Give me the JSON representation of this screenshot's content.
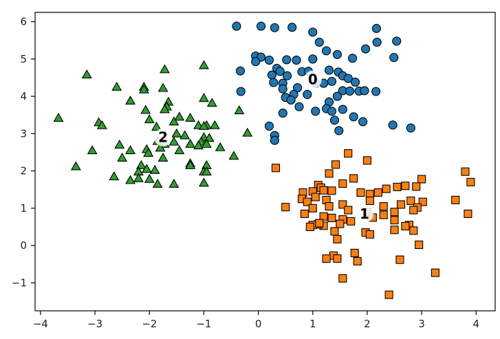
{
  "chart_data": {
    "type": "scatter",
    "title": "",
    "xlabel": "",
    "ylabel": "",
    "xlim": [
      -4.1,
      4.35
    ],
    "ylim": [
      -1.75,
      6.25
    ],
    "xticks": [
      -4,
      -3,
      -2,
      -1,
      0,
      1,
      2,
      3,
      4
    ],
    "yticks": [
      -1,
      0,
      1,
      2,
      3,
      4,
      5,
      6
    ],
    "grid": false,
    "legend": "none",
    "series": [
      {
        "marker": "circle",
        "color": "#1f77b4",
        "points": [
          [
            -0.4,
            5.88
          ],
          [
            0.05,
            5.88
          ],
          [
            0.3,
            5.84
          ],
          [
            0.62,
            5.85
          ],
          [
            1.0,
            5.72
          ],
          [
            1.12,
            5.45
          ],
          [
            2.17,
            5.82
          ],
          [
            2.18,
            5.45
          ],
          [
            2.54,
            5.48
          ],
          [
            1.97,
            5.27
          ],
          [
            2.49,
            5.04
          ],
          [
            -0.05,
            5.08
          ],
          [
            0.05,
            5.05
          ],
          [
            -0.05,
            4.93
          ],
          [
            0.2,
            4.97
          ],
          [
            0.52,
            4.98
          ],
          [
            0.7,
            4.97
          ],
          [
            1.0,
            5.0
          ],
          [
            1.25,
            5.22
          ],
          [
            1.45,
            5.12
          ],
          [
            1.73,
            5.02
          ],
          [
            0.34,
            4.75
          ],
          [
            0.4,
            4.67
          ],
          [
            0.25,
            4.57
          ],
          [
            0.53,
            4.55
          ],
          [
            0.8,
            4.66
          ],
          [
            0.92,
            4.67
          ],
          [
            1.3,
            4.7
          ],
          [
            1.47,
            4.65
          ],
          [
            1.55,
            4.55
          ],
          [
            1.65,
            4.48
          ],
          [
            1.78,
            4.38
          ],
          [
            -0.33,
            4.68
          ],
          [
            0.28,
            4.37
          ],
          [
            0.45,
            4.35
          ],
          [
            0.72,
            4.23
          ],
          [
            0.45,
            4.2
          ],
          [
            1.05,
            4.35
          ],
          [
            1.2,
            4.35
          ],
          [
            1.35,
            4.4
          ],
          [
            1.55,
            4.15
          ],
          [
            -0.32,
            4.13
          ],
          [
            0.65,
            4.05
          ],
          [
            0.9,
            4.05
          ],
          [
            1.45,
            4.0
          ],
          [
            1.68,
            4.14
          ],
          [
            1.85,
            4.14
          ],
          [
            1.95,
            4.15
          ],
          [
            2.16,
            4.13
          ],
          [
            0.5,
            3.97
          ],
          [
            0.6,
            3.9
          ],
          [
            1.3,
            3.85
          ],
          [
            0.75,
            3.72
          ],
          [
            1.25,
            3.67
          ],
          [
            1.35,
            3.6
          ],
          [
            0.45,
            3.55
          ],
          [
            1.55,
            3.65
          ],
          [
            1.75,
            3.45
          ],
          [
            1.05,
            3.6
          ],
          [
            1.4,
            3.36
          ],
          [
            0.2,
            3.2
          ],
          [
            0.3,
            2.95
          ],
          [
            0.3,
            2.82
          ],
          [
            1.48,
            3.08
          ],
          [
            1.92,
            3.32
          ],
          [
            2.47,
            3.23
          ],
          [
            2.8,
            3.15
          ]
        ]
      },
      {
        "marker": "square",
        "color": "#ff7f0e",
        "points": [
          [
            1.65,
            2.47
          ],
          [
            1.42,
            2.17
          ],
          [
            2.0,
            2.28
          ],
          [
            0.32,
            2.08
          ],
          [
            1.3,
            1.93
          ],
          [
            1.55,
            1.66
          ],
          [
            1.35,
            1.47
          ],
          [
            1.75,
            1.8
          ],
          [
            1.1,
            1.62
          ],
          [
            1.15,
            1.55
          ],
          [
            1.2,
            1.48
          ],
          [
            3.8,
            1.98
          ],
          [
            3.9,
            1.7
          ],
          [
            3.0,
            1.78
          ],
          [
            2.9,
            1.58
          ],
          [
            2.7,
            1.6
          ],
          [
            2.55,
            1.57
          ],
          [
            2.35,
            1.52
          ],
          [
            2.2,
            1.42
          ],
          [
            2.05,
            1.38
          ],
          [
            1.88,
            1.42
          ],
          [
            0.82,
            1.42
          ],
          [
            1.0,
            1.45
          ],
          [
            1.05,
            1.3
          ],
          [
            1.25,
            1.22
          ],
          [
            0.8,
            1.25
          ],
          [
            0.9,
            1.17
          ],
          [
            1.55,
            1.1
          ],
          [
            1.3,
            1.05
          ],
          [
            1.65,
            0.95
          ],
          [
            0.5,
            1.03
          ],
          [
            1.0,
            1.0
          ],
          [
            3.62,
            1.22
          ],
          [
            2.05,
            1.2
          ],
          [
            2.3,
            1.05
          ],
          [
            2.62,
            1.1
          ],
          [
            2.8,
            1.2
          ],
          [
            3.02,
            1.17
          ],
          [
            2.92,
            1.02
          ],
          [
            2.0,
            0.9
          ],
          [
            2.1,
            0.75
          ],
          [
            2.3,
            0.82
          ],
          [
            2.5,
            0.9
          ],
          [
            2.85,
            0.95
          ],
          [
            3.85,
            0.85
          ],
          [
            0.85,
            0.85
          ],
          [
            1.2,
            0.78
          ],
          [
            1.35,
            0.74
          ],
          [
            1.55,
            0.7
          ],
          [
            1.7,
            0.65
          ],
          [
            1.5,
            0.58
          ],
          [
            1.2,
            0.53
          ],
          [
            1.1,
            0.57
          ],
          [
            1.0,
            0.55
          ],
          [
            0.95,
            0.5
          ],
          [
            1.12,
            0.6
          ],
          [
            2.5,
            0.68
          ],
          [
            2.77,
            0.55
          ],
          [
            1.97,
            0.35
          ],
          [
            2.05,
            0.3
          ],
          [
            2.5,
            0.42
          ],
          [
            2.85,
            0.4
          ],
          [
            2.7,
            0.52
          ],
          [
            1.4,
            0.38
          ],
          [
            1.45,
            0.17
          ],
          [
            2.95,
            0.02
          ],
          [
            1.77,
            -0.2
          ],
          [
            1.38,
            -0.27
          ],
          [
            1.45,
            -0.35
          ],
          [
            1.25,
            -0.35
          ],
          [
            1.82,
            -0.42
          ],
          [
            2.6,
            -0.38
          ],
          [
            3.25,
            -0.73
          ],
          [
            1.55,
            -0.88
          ],
          [
            2.4,
            -1.32
          ]
        ]
      },
      {
        "marker": "triangle",
        "color": "#2ca02c",
        "points": [
          [
            -1.0,
            4.83
          ],
          [
            -1.72,
            4.72
          ],
          [
            -3.15,
            4.58
          ],
          [
            -2.6,
            4.25
          ],
          [
            -2.1,
            4.25
          ],
          [
            -2.1,
            4.18
          ],
          [
            -1.75,
            4.22
          ],
          [
            -1.0,
            3.95
          ],
          [
            -2.35,
            3.88
          ],
          [
            -1.65,
            3.85
          ],
          [
            -0.85,
            3.82
          ],
          [
            -1.68,
            3.72
          ],
          [
            -1.72,
            3.65
          ],
          [
            -2.07,
            3.63
          ],
          [
            -0.35,
            3.62
          ],
          [
            -1.45,
            3.45
          ],
          [
            -1.25,
            3.42
          ],
          [
            -3.67,
            3.42
          ],
          [
            -2.0,
            3.38
          ],
          [
            -1.55,
            3.32
          ],
          [
            -1.87,
            3.18
          ],
          [
            -2.93,
            3.3
          ],
          [
            -2.87,
            3.22
          ],
          [
            -1.1,
            3.22
          ],
          [
            -0.95,
            3.22
          ],
          [
            -0.8,
            3.22
          ],
          [
            -1.0,
            3.2
          ],
          [
            -0.2,
            3.02
          ],
          [
            -1.5,
            3.0
          ],
          [
            -1.35,
            2.95
          ],
          [
            -1.0,
            2.9
          ],
          [
            -0.9,
            2.88
          ],
          [
            -1.85,
            2.8
          ],
          [
            -1.05,
            2.78
          ],
          [
            -1.25,
            2.72
          ],
          [
            -1.1,
            2.68
          ],
          [
            -0.95,
            2.72
          ],
          [
            -0.7,
            2.63
          ],
          [
            -1.72,
            2.72
          ],
          [
            -1.55,
            2.78
          ],
          [
            -1.8,
            2.62
          ],
          [
            -2.55,
            2.7
          ],
          [
            -3.05,
            2.55
          ],
          [
            -2.35,
            2.55
          ],
          [
            -2.05,
            2.58
          ],
          [
            -1.45,
            2.55
          ],
          [
            -2.02,
            2.48
          ],
          [
            -0.45,
            2.4
          ],
          [
            -2.5,
            2.35
          ],
          [
            -1.75,
            2.35
          ],
          [
            -1.25,
            2.2
          ],
          [
            -1.25,
            2.15
          ],
          [
            -0.95,
            2.15
          ],
          [
            -2.15,
            2.15
          ],
          [
            -3.35,
            2.12
          ],
          [
            -2.05,
            2.05
          ],
          [
            -1.9,
            2.02
          ],
          [
            -2.2,
            1.98
          ],
          [
            -1.0,
            1.98
          ],
          [
            -0.95,
            1.98
          ],
          [
            -2.65,
            1.85
          ],
          [
            -2.2,
            1.8
          ],
          [
            -2.0,
            1.78
          ],
          [
            -2.35,
            1.75
          ],
          [
            -1.85,
            1.65
          ],
          [
            -1.55,
            1.65
          ],
          [
            -1.0,
            1.68
          ]
        ]
      }
    ],
    "cluster_centers": [
      {
        "label": "0",
        "x": 1.0,
        "y": 4.45
      },
      {
        "label": "1",
        "x": 1.95,
        "y": 0.85
      },
      {
        "label": "2",
        "x": -1.75,
        "y": 2.9
      }
    ]
  }
}
